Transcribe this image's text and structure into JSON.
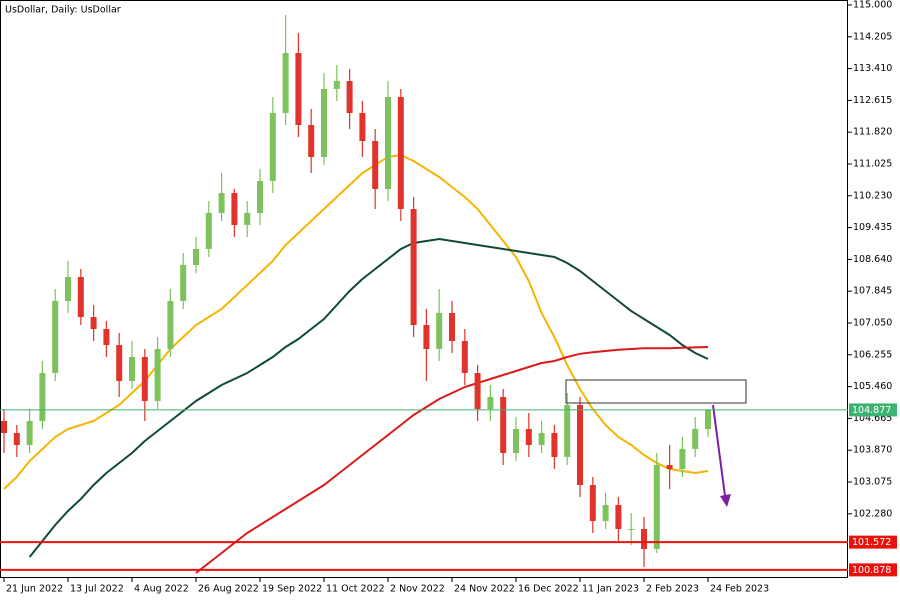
{
  "chart_data": {
    "type": "candlestick",
    "title": "UsDollar, Daily:  UsDollar",
    "categories": [
      "21 Jun 2022",
      null,
      null,
      null,
      null,
      "13 Jul 2022",
      null,
      null,
      null,
      null,
      "4 Aug 2022",
      null,
      null,
      null,
      null,
      "26 Aug 2022",
      null,
      null,
      null,
      null,
      "19 Sep 2022",
      null,
      null,
      null,
      null,
      "11 Oct 2022",
      null,
      null,
      null,
      null,
      "2 Nov 2022",
      null,
      null,
      null,
      null,
      "24 Nov 2022",
      null,
      null,
      null,
      null,
      "16 Dec 2022",
      null,
      null,
      null,
      null,
      "11 Jan 2023",
      null,
      null,
      null,
      null,
      "2 Feb 2023",
      null,
      null,
      null,
      null,
      "24 Feb 2023"
    ],
    "open": [
      104.6,
      104.3,
      104.0,
      104.6,
      105.8,
      107.6,
      108.2,
      107.2,
      106.9,
      106.5,
      105.6,
      106.2,
      105.1,
      106.4,
      107.6,
      108.5,
      108.9,
      109.8,
      110.3,
      109.5,
      109.8,
      110.6,
      112.3,
      113.8,
      112.0,
      111.2,
      112.9,
      113.1,
      112.3,
      111.6,
      110.4,
      112.7,
      109.9,
      107.0,
      106.4,
      107.3,
      106.6,
      105.8,
      104.9,
      105.2,
      103.8,
      104.4,
      104.0,
      104.3,
      103.7,
      105.0,
      103.0,
      102.1,
      102.5,
      101.9,
      101.9,
      101.4,
      103.5,
      103.4,
      103.9,
      104.4
    ],
    "high": [
      104.9,
      104.5,
      104.9,
      106.1,
      107.9,
      108.6,
      108.4,
      107.5,
      107.1,
      106.8,
      106.6,
      106.4,
      106.7,
      107.9,
      108.8,
      109.2,
      110.1,
      110.8,
      110.4,
      110.1,
      110.9,
      112.7,
      114.75,
      114.3,
      112.4,
      113.3,
      113.5,
      113.4,
      112.6,
      111.9,
      113.1,
      112.9,
      110.2,
      107.4,
      107.9,
      107.6,
      106.9,
      106.0,
      105.5,
      105.4,
      104.7,
      104.8,
      104.6,
      104.5,
      105.3,
      105.2,
      103.2,
      102.8,
      102.7,
      102.3,
      102.2,
      103.8,
      104.0,
      104.2,
      104.7,
      104.9
    ],
    "low": [
      103.8,
      103.7,
      103.8,
      104.4,
      105.6,
      107.3,
      107.0,
      106.6,
      106.2,
      105.2,
      105.4,
      104.6,
      104.9,
      106.2,
      107.4,
      108.3,
      108.7,
      109.6,
      109.2,
      109.2,
      109.5,
      110.3,
      112.0,
      111.7,
      110.8,
      111.0,
      112.6,
      111.9,
      111.2,
      109.9,
      110.1,
      109.6,
      106.7,
      105.6,
      106.1,
      106.3,
      105.5,
      104.6,
      104.6,
      103.5,
      103.6,
      103.7,
      103.8,
      103.4,
      103.5,
      102.7,
      101.8,
      101.9,
      101.6,
      101.5,
      100.95,
      101.3,
      102.9,
      103.2,
      103.7,
      104.2
    ],
    "close": [
      104.3,
      104.0,
      104.6,
      105.8,
      107.6,
      108.2,
      107.2,
      106.9,
      106.5,
      105.6,
      106.2,
      105.1,
      106.4,
      107.6,
      108.5,
      108.9,
      109.8,
      110.3,
      109.5,
      109.8,
      110.6,
      112.3,
      113.8,
      112.0,
      111.2,
      112.9,
      113.1,
      112.3,
      111.6,
      110.4,
      112.7,
      109.9,
      107.0,
      106.4,
      107.3,
      106.6,
      105.8,
      104.9,
      105.2,
      103.8,
      104.4,
      104.0,
      104.3,
      103.7,
      105.0,
      103.0,
      102.1,
      102.5,
      101.9,
      101.9,
      101.4,
      103.5,
      103.4,
      103.9,
      104.4,
      104.877
    ],
    "up_color": "#7dc35b",
    "down_color": "#e0332c",
    "series": [
      {
        "color": "#f5b400",
        "values": [
          102.9,
          103.2,
          103.6,
          103.9,
          104.2,
          104.4,
          104.5,
          104.6,
          104.8,
          105.0,
          105.3,
          105.6,
          106.0,
          106.4,
          106.7,
          107.0,
          107.2,
          107.4,
          107.7,
          108.0,
          108.3,
          108.6,
          109.0,
          109.3,
          109.6,
          109.9,
          110.2,
          110.5,
          110.8,
          111.0,
          111.2,
          111.25,
          111.1,
          110.9,
          110.7,
          110.45,
          110.2,
          109.9,
          109.5,
          109.1,
          108.7,
          108.1,
          107.3,
          106.7,
          106.0,
          105.4,
          104.9,
          104.5,
          104.2,
          104.0,
          103.75,
          103.55,
          103.4,
          103.35,
          103.3,
          103.35
        ]
      },
      {
        "color": "#0e4a3a",
        "values": [
          null,
          null,
          101.2,
          101.6,
          102.0,
          102.35,
          102.65,
          103.0,
          103.3,
          103.55,
          103.8,
          104.1,
          104.35,
          104.6,
          104.85,
          105.1,
          105.3,
          105.5,
          105.65,
          105.8,
          106.0,
          106.2,
          106.45,
          106.65,
          106.9,
          107.15,
          107.5,
          107.85,
          108.15,
          108.4,
          108.65,
          108.9,
          109.05,
          109.1,
          109.15,
          109.1,
          109.05,
          109.0,
          108.95,
          108.9,
          108.85,
          108.8,
          108.75,
          108.7,
          108.55,
          108.35,
          108.1,
          107.85,
          107.6,
          107.35,
          107.15,
          106.95,
          106.75,
          106.5,
          106.3,
          106.15
        ]
      },
      {
        "color": "#dd1a1a",
        "values": [
          null,
          null,
          null,
          null,
          null,
          null,
          null,
          null,
          null,
          null,
          null,
          null,
          null,
          null,
          null,
          100.8,
          101.05,
          101.3,
          101.55,
          101.8,
          102.0,
          102.2,
          102.4,
          102.6,
          102.8,
          103.0,
          103.25,
          103.5,
          103.75,
          104.0,
          104.25,
          104.5,
          104.75,
          104.95,
          105.15,
          105.3,
          105.45,
          105.55,
          105.65,
          105.75,
          105.85,
          105.95,
          106.05,
          106.1,
          106.2,
          106.28,
          106.32,
          106.35,
          106.38,
          106.4,
          106.42,
          106.42,
          106.42,
          106.43,
          106.44,
          106.45
        ]
      }
    ],
    "hlines": [
      {
        "value": 101.572,
        "color": "#e8120c"
      },
      {
        "value": 100.878,
        "color": "#e8120c"
      },
      {
        "value": 104.877,
        "color": "#3cb371"
      }
    ],
    "ylim": [
      100.675,
      115.125
    ],
    "yticks": [
      {
        "value": 115,
        "label": "115.000"
      },
      114.205,
      {
        "value": 113.41,
        "label": "113.410"
      },
      112.615,
      {
        "value": 111.82,
        "label": "111.820"
      },
      111.025,
      {
        "value": 110.23,
        "label": "110.230"
      },
      109.435,
      {
        "value": 108.64,
        "label": "108.640"
      },
      107.845,
      {
        "value": 107.05,
        "label": "107.050"
      },
      106.255,
      {
        "value": 105.46,
        "label": "105.460"
      },
      104.665,
      {
        "value": 103.87,
        "label": "103.870"
      },
      103.075,
      {
        "value": 102.28,
        "label": "102.280"
      }
    ]
  }
}
